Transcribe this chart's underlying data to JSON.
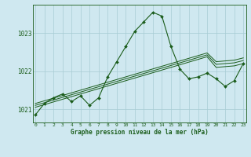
{
  "title": "Graphe pression niveau de la mer (hPa)",
  "bg_color": "#cfe8f0",
  "line_color": "#1a5c1a",
  "grid_color": "#a8ccd4",
  "hours": [
    0,
    1,
    2,
    3,
    4,
    5,
    6,
    7,
    8,
    9,
    10,
    11,
    12,
    13,
    14,
    15,
    16,
    17,
    18,
    19,
    20,
    21,
    22,
    23
  ],
  "main_series": [
    1020.85,
    1021.15,
    1021.3,
    1021.4,
    1021.2,
    1021.35,
    1021.1,
    1021.3,
    1021.85,
    1022.25,
    1022.65,
    1023.05,
    1023.3,
    1023.55,
    1023.45,
    1022.65,
    1022.05,
    1021.8,
    1021.85,
    1021.95,
    1021.8,
    1021.6,
    1021.75,
    1022.2
  ],
  "trend1": [
    1021.05,
    1021.12,
    1021.19,
    1021.26,
    1021.33,
    1021.4,
    1021.47,
    1021.54,
    1021.61,
    1021.68,
    1021.75,
    1021.82,
    1021.89,
    1021.96,
    1022.03,
    1022.1,
    1022.17,
    1022.24,
    1022.31,
    1022.38,
    1022.1,
    1022.12,
    1022.14,
    1022.2
  ],
  "trend2": [
    1021.1,
    1021.17,
    1021.24,
    1021.31,
    1021.38,
    1021.45,
    1021.52,
    1021.59,
    1021.66,
    1021.73,
    1021.8,
    1021.87,
    1021.94,
    1022.01,
    1022.08,
    1022.15,
    1022.22,
    1022.29,
    1022.36,
    1022.43,
    1022.18,
    1022.2,
    1022.22,
    1022.28
  ],
  "trend3": [
    1021.15,
    1021.22,
    1021.29,
    1021.36,
    1021.43,
    1021.5,
    1021.57,
    1021.64,
    1021.71,
    1021.78,
    1021.85,
    1021.92,
    1021.99,
    1022.06,
    1022.13,
    1022.2,
    1022.27,
    1022.34,
    1022.41,
    1022.48,
    1022.25,
    1022.27,
    1022.29,
    1022.35
  ],
  "ylim": [
    1020.65,
    1023.75
  ],
  "yticks": [
    1021,
    1022,
    1023
  ],
  "xlim": [
    -0.3,
    23.3
  ],
  "figsize": [
    3.2,
    2.0
  ],
  "dpi": 100
}
